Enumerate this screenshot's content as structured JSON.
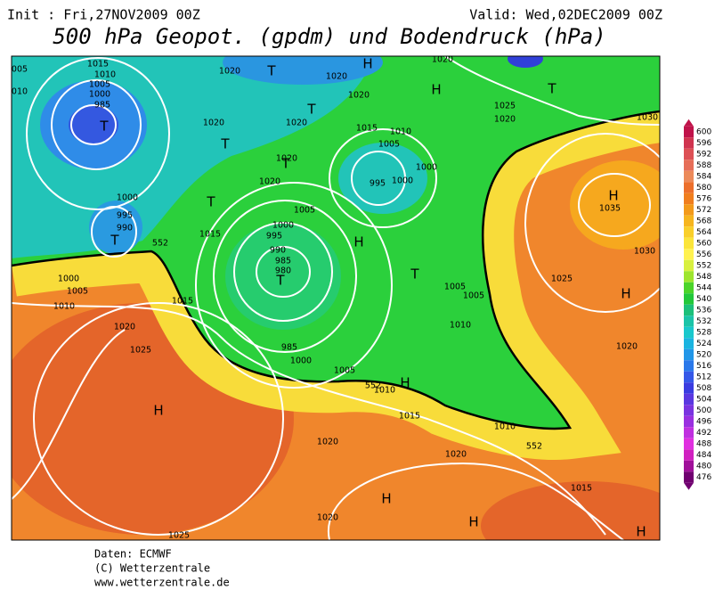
{
  "header": {
    "init": "Init : Fri,27NOV2009 00Z",
    "valid": "Valid: Wed,02DEC2009 00Z",
    "title": "500 hPa Geopot. (gpdm) und Bodendruck (hPa)"
  },
  "legend": {
    "values": [
      600,
      596,
      592,
      588,
      584,
      580,
      576,
      572,
      568,
      564,
      560,
      556,
      552,
      548,
      544,
      540,
      536,
      532,
      528,
      524,
      520,
      516,
      512,
      508,
      504,
      500,
      496,
      492,
      488,
      484,
      480,
      476
    ],
    "colors": [
      "#c0134a",
      "#d0344f",
      "#dd5055",
      "#e66e58",
      "#ec8a5a",
      "#ec6f2c",
      "#f07e1e",
      "#f39a1a",
      "#f6b51e",
      "#f9cf2a",
      "#fbe53a",
      "#fff250",
      "#d8f040",
      "#9ee52e",
      "#4bd42a",
      "#22c83a",
      "#1cc07a",
      "#1bc4a8",
      "#19c8cc",
      "#1ab4e0",
      "#2196e8",
      "#2a78ea",
      "#3558e8",
      "#3a3ce0",
      "#5a38e0",
      "#7a34e0",
      "#9a30e0",
      "#c030e0",
      "#e030e0",
      "#d020c0",
      "#a0109a",
      "#700070"
    ]
  },
  "map": {
    "isobar_labels": [
      "005",
      "010",
      1015,
      1010,
      1005,
      1000,
      985,
      1020,
      1020,
      1020,
      1020,
      1020,
      1020,
      1020,
      1020,
      1020,
      1025,
      1015,
      1010,
      1005,
      1000,
      1000,
      995,
      1005,
      1000,
      995,
      990,
      985,
      980,
      1000,
      995,
      990,
      1015,
      1000,
      1005,
      1010,
      1015,
      1020,
      1025,
      985,
      1000,
      1005,
      1010,
      1015,
      1020,
      1020,
      1010,
      1015,
      1025,
      1020,
      1010,
      1005,
      1005,
      1025,
      1030,
      1035,
      1030,
      1020,
      552,
      552,
      552
    ],
    "centers": [
      "H",
      "H",
      "T",
      "T",
      "T",
      "T",
      "T",
      "T",
      "T",
      "T",
      "T",
      "H",
      "T",
      "H",
      "H",
      "H",
      "H",
      "H",
      "H",
      "H"
    ]
  },
  "footer": {
    "source": "Daten: ECMWF",
    "copyright": "(C) Wetterzentrale",
    "url": "www.wetterzentrale.de"
  }
}
